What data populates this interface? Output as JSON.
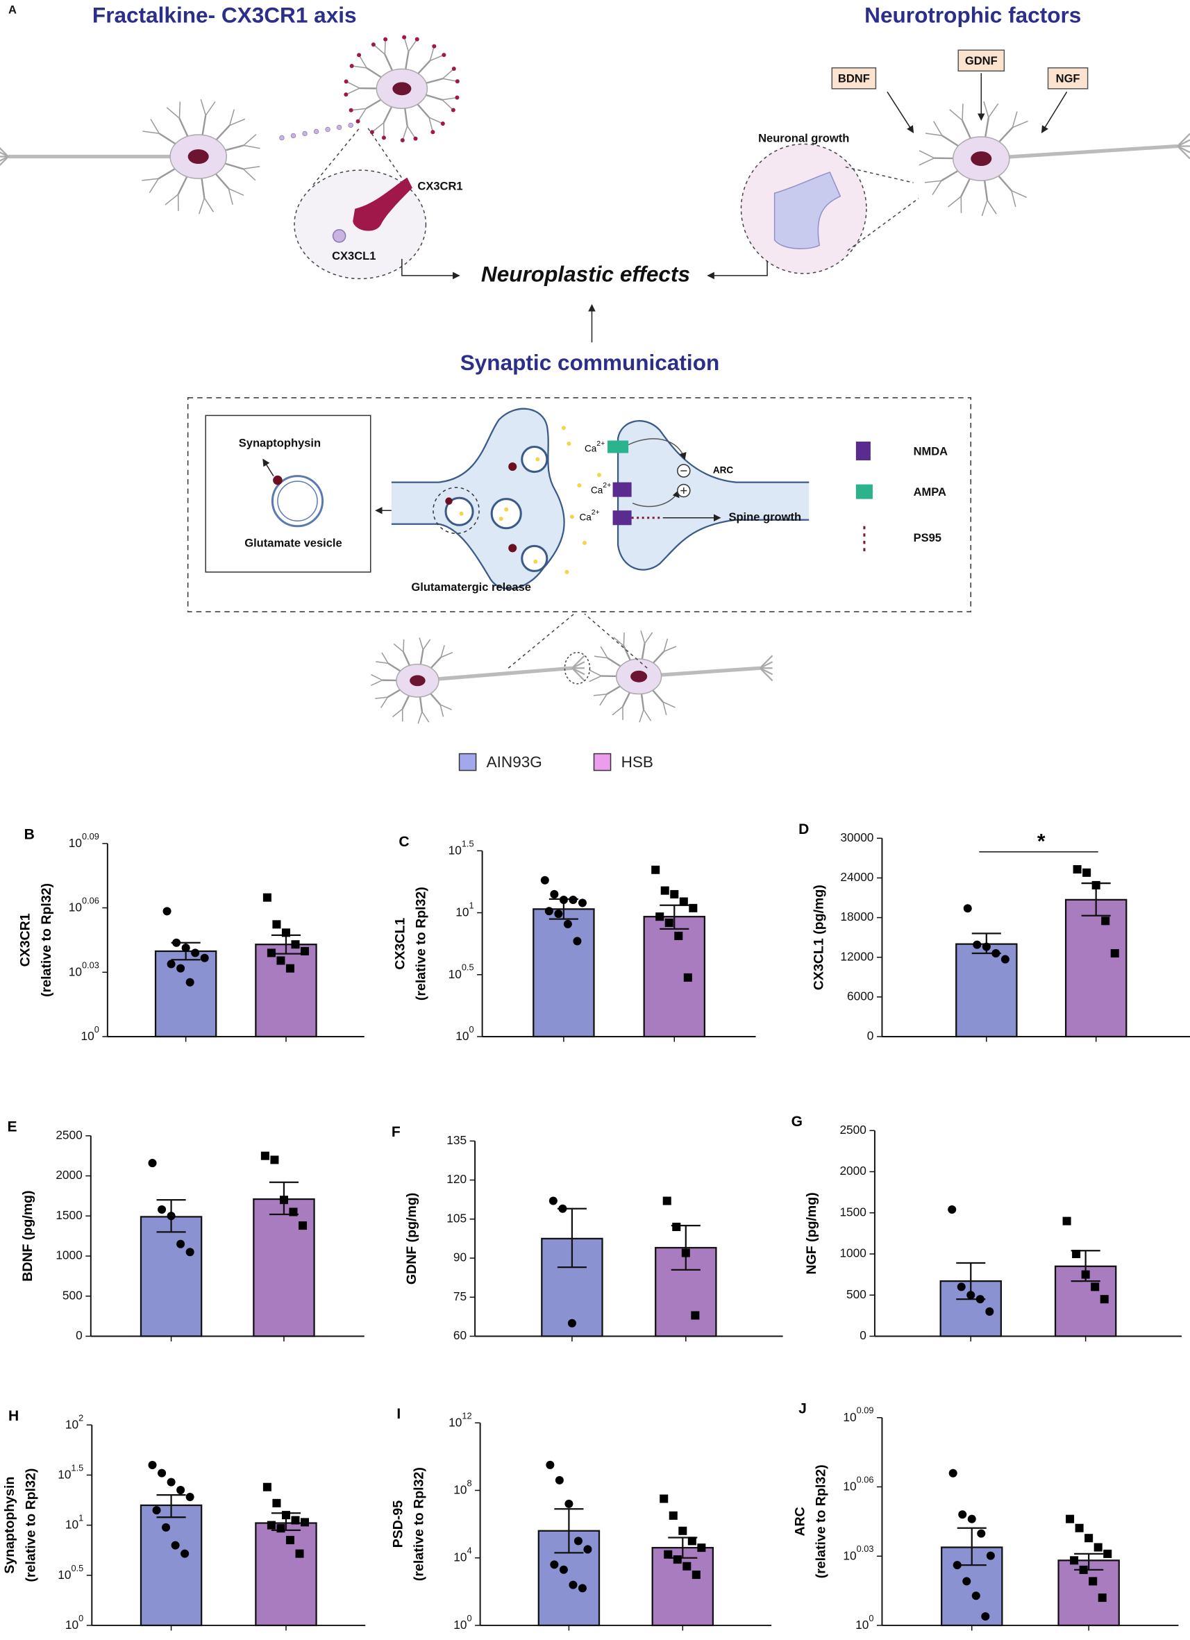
{
  "diagram": {
    "panel": "A",
    "titles": {
      "fractalkine": "Fractalkine- CX3CR1 axis",
      "neurotrophic": "Neurotrophic factors",
      "synaptic": "Synaptic communication"
    },
    "factors": [
      "BDNF",
      "GDNF",
      "NGF"
    ],
    "labels": {
      "neuronal_growth": "Neuronal growth",
      "cx3cr1": "CX3CR1",
      "cx3cl1": "CX3CL1",
      "neuroplastic": "Neuroplastic effects",
      "synaptophysin": "Synaptophysin",
      "vesicle": "Glutamate vesicle",
      "release": "Glutamatergic release",
      "arc": "ARC",
      "spine": "Spine growth"
    },
    "ion": {
      "base": "Ca",
      "sup": "2+"
    },
    "receptors": [
      "NMDA",
      "AMPA",
      "PS95"
    ]
  },
  "legend": [
    {
      "name": "AIN93G",
      "color": "#a3a8ec"
    },
    {
      "name": "HSB",
      "color": "#ec9eee"
    }
  ],
  "chart_data": [
    {
      "type": "bar",
      "panel": "B",
      "ylabel": [
        "CX3CR1",
        "(relative to Rpl32)"
      ],
      "log": true,
      "ylim": [
        1,
        1.2303
      ],
      "yticks": [
        {
          "value": 1,
          "label": "10",
          "sup": "0"
        },
        {
          "value": 1.0715,
          "label": "10",
          "sup": "0.03"
        },
        {
          "value": 1.1482,
          "label": "10",
          "sup": "0.06"
        },
        {
          "value": 1.2303,
          "label": "10",
          "sup": "0.09"
        }
      ],
      "series": [
        {
          "color": "#8b92d2",
          "values": [
            1.096
          ],
          "error_bars": [
            [
              1.086,
              1.106
            ]
          ],
          "points": [
            [
              1.144,
              1.106,
              1.1,
              1.094,
              1.088,
              1.081,
              1.076,
              1.06
            ]
          ]
        },
        {
          "color": "#a97cbf",
          "values": [
            1.104
          ],
          "error_bars": [
            [
              1.093,
              1.115
            ]
          ],
          "points": [
            [
              1.161,
              1.128,
              1.118,
              1.104,
              1.096,
              1.094,
              1.085,
              1.076
            ]
          ]
        }
      ]
    },
    {
      "type": "bar",
      "panel": "C",
      "ylabel": [
        "CX3CL1",
        "(relative to Rpl32)"
      ],
      "log": true,
      "ylim": [
        1,
        31.623
      ],
      "yticks": [
        {
          "value": 1,
          "label": "10",
          "sup": "0"
        },
        {
          "value": 3.1623,
          "label": "10",
          "sup": "0.5"
        },
        {
          "value": 10,
          "label": "10",
          "sup": "1"
        },
        {
          "value": 31.623,
          "label": "10",
          "sup": "1.5"
        }
      ],
      "series": [
        {
          "color": "#8b92d2",
          "values": [
            10.7
          ],
          "error_bars": [
            [
              8.9,
              12.9
            ]
          ],
          "points": [
            [
              18.3,
              14.1,
              12.7,
              12.7,
              12,
              10.3,
              9.8,
              8.1,
              5.9
            ]
          ]
        },
        {
          "color": "#a97cbf",
          "values": [
            9.3
          ],
          "error_bars": [
            [
              7.4,
              11.5
            ]
          ],
          "points": [
            [
              22.2,
              15.1,
              14.1,
              12.3,
              10.9,
              9.3,
              8.3,
              6.5,
              3
            ]
          ]
        }
      ]
    },
    {
      "type": "bar",
      "panel": "D",
      "ylabel": [
        "CX3CL1 (pg/mg)"
      ],
      "log": false,
      "ylim": [
        0,
        30000
      ],
      "yticks": [
        0,
        6000,
        12000,
        18000,
        24000,
        30000
      ],
      "significance": "*",
      "series": [
        {
          "color": "#8b92d2",
          "values": [
            14000
          ],
          "error_bars": [
            [
              12600,
              15600
            ]
          ],
          "points": [
            [
              19400,
              13900,
              13600,
              12600,
              11700
            ]
          ]
        },
        {
          "color": "#a97cbf",
          "values": [
            20700
          ],
          "error_bars": [
            [
              18300,
              23200
            ]
          ],
          "points": [
            [
              25300,
              24800,
              22900,
              17500,
              12600
            ]
          ]
        }
      ]
    },
    {
      "type": "bar",
      "panel": "E",
      "ylabel": [
        "BDNF (pg/mg)"
      ],
      "log": false,
      "ylim": [
        0,
        2500
      ],
      "yticks": [
        0,
        500,
        1000,
        1500,
        2000,
        2500
      ],
      "series": [
        {
          "color": "#8b92d2",
          "values": [
            1490
          ],
          "error_bars": [
            [
              1300,
              1700
            ]
          ],
          "points": [
            [
              2160,
              1580,
              1500,
              1150,
              1050
            ]
          ]
        },
        {
          "color": "#a97cbf",
          "values": [
            1710
          ],
          "error_bars": [
            [
              1520,
              1920
            ]
          ],
          "points": [
            [
              2250,
              2200,
              1700,
              1550,
              1380
            ]
          ]
        }
      ]
    },
    {
      "type": "bar",
      "panel": "F",
      "ylabel": [
        "GDNF (pg/mg)"
      ],
      "log": false,
      "ylim": [
        60,
        135
      ],
      "yticks": [
        60,
        75,
        90,
        105,
        120,
        135
      ],
      "series": [
        {
          "color": "#8b92d2",
          "values": [
            97.5
          ],
          "error_bars": [
            [
              86.5,
              109
            ]
          ],
          "points": [
            [
              112,
              109,
              65
            ]
          ]
        },
        {
          "color": "#a97cbf",
          "values": [
            94
          ],
          "error_bars": [
            [
              85.5,
              102.5
            ]
          ],
          "points": [
            [
              112,
              102,
              92,
              68
            ]
          ]
        }
      ]
    },
    {
      "type": "bar",
      "panel": "G",
      "ylabel": [
        "NGF (pg/mg)"
      ],
      "log": false,
      "ylim": [
        0,
        2500
      ],
      "yticks": [
        0,
        500,
        1000,
        1500,
        2000,
        2500
      ],
      "series": [
        {
          "color": "#8b92d2",
          "values": [
            670
          ],
          "error_bars": [
            [
              450,
              890
            ]
          ],
          "points": [
            [
              1540,
              600,
              500,
              450,
              300
            ]
          ]
        },
        {
          "color": "#a97cbf",
          "values": [
            850
          ],
          "error_bars": [
            [
              670,
              1040
            ]
          ],
          "points": [
            [
              1400,
              1000,
              750,
              600,
              450
            ]
          ]
        }
      ]
    },
    {
      "type": "bar",
      "panel": "H",
      "ylabel": [
        "Synaptophysin",
        "(relative to Rpl32)"
      ],
      "log": true,
      "ylim": [
        1,
        100
      ],
      "yticks": [
        {
          "value": 1,
          "label": "10",
          "sup": "0"
        },
        {
          "value": 3.1623,
          "label": "10",
          "sup": "0.5"
        },
        {
          "value": 10,
          "label": "10",
          "sup": "1"
        },
        {
          "value": 31.623,
          "label": "10",
          "sup": "1.5"
        },
        {
          "value": 100,
          "label": "10",
          "sup": "2"
        }
      ],
      "series": [
        {
          "color": "#8b92d2",
          "values": [
            15.8
          ],
          "error_bars": [
            [
              12,
              20
            ]
          ],
          "points": [
            [
              39.8,
              33.1,
              26.9,
              22.4,
              19.1,
              14.1,
              9.5,
              6.3,
              5.2
            ]
          ]
        },
        {
          "color": "#a97cbf",
          "values": [
            10.5
          ],
          "error_bars": [
            [
              8.9,
              13.2
            ]
          ],
          "points": [
            [
              24,
              16.6,
              12.6,
              11.2,
              10.7,
              10,
              9.3,
              7.1,
              5.2
            ]
          ]
        }
      ]
    },
    {
      "type": "bar",
      "panel": "I",
      "ylabel": [
        "PSD-95",
        "(relative to Rpl32)"
      ],
      "log": true,
      "ylim": [
        1,
        1000000000000
      ],
      "yticks": [
        {
          "value": 1,
          "label": "10",
          "sup": "0"
        },
        {
          "value": 10000,
          "label": "10",
          "sup": "4"
        },
        {
          "value": 100000000,
          "label": "10",
          "sup": "8"
        },
        {
          "value": 1000000000000,
          "label": "10",
          "sup": "12"
        }
      ],
      "series": [
        {
          "color": "#8b92d2",
          "values": [
            400000
          ],
          "error_bars": [
            [
              20000,
              7900000
            ]
          ],
          "points": [
            [
              3200000000,
              400000000,
              16000000,
              100000,
              32000,
              4000,
              2000,
              250,
              160
            ]
          ]
        },
        {
          "color": "#a97cbf",
          "values": [
            40000
          ],
          "error_bars": [
            [
              10000,
              160000
            ]
          ],
          "points": [
            [
              32000000,
              3200000,
              400000,
              100000,
              40000,
              16000,
              8000,
              3200,
              1000
            ]
          ]
        }
      ]
    },
    {
      "type": "bar",
      "panel": "J",
      "ylabel": [
        "ARC",
        "(relative to Rpl32)"
      ],
      "log": true,
      "ylim": [
        1,
        1.2303
      ],
      "yticks": [
        {
          "value": 1,
          "label": "10",
          "sup": "0"
        },
        {
          "value": 1.0715,
          "label": "10",
          "sup": "0.03"
        },
        {
          "value": 1.1482,
          "label": "10",
          "sup": "0.06"
        },
        {
          "value": 1.2303,
          "label": "10",
          "sup": "0.09"
        }
      ],
      "series": [
        {
          "color": "#8b92d2",
          "values": [
            1.081
          ],
          "error_bars": [
            [
              1.062,
              1.102
            ]
          ],
          "points": [
            [
              1.164,
              1.117,
              1.112,
              1.096,
              1.072,
              1.062,
              1.045,
              1.03,
              1.009
            ]
          ]
        },
        {
          "color": "#a97cbf",
          "values": [
            1.067
          ],
          "error_bars": [
            [
              1.057,
              1.074
            ]
          ],
          "points": [
            [
              1.112,
              1.102,
              1.091,
              1.081,
              1.074,
              1.067,
              1.057,
              1.045,
              1.028
            ]
          ]
        }
      ]
    }
  ]
}
